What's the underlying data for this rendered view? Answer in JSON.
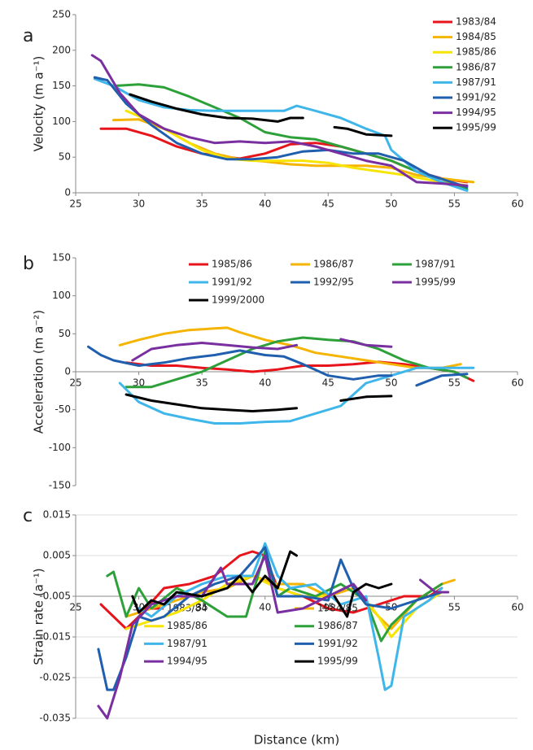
{
  "chart_data": [
    {
      "type": "line",
      "label": "a",
      "ylabel": "Velocity (m a⁻¹)",
      "xlim": [
        25,
        60
      ],
      "xticks": [
        25,
        30,
        35,
        40,
        45,
        50,
        55,
        60
      ],
      "ylim": [
        0,
        250
      ],
      "yticks": [
        0,
        50,
        100,
        150,
        200,
        250
      ],
      "xaxis_crossing": 0,
      "grid": false,
      "legend": "upper right",
      "series": [
        {
          "name": "1983/84",
          "color": "#e8141b",
          "x": [
            27,
            29,
            31,
            33,
            35,
            38,
            40,
            42,
            44,
            46,
            48,
            50,
            52,
            54,
            56
          ],
          "values": [
            90,
            90,
            80,
            65,
            55,
            48,
            55,
            68,
            70,
            65,
            55,
            45,
            30,
            20,
            15
          ]
        },
        {
          "name": "1984/85",
          "color": "#f5b400",
          "x": [
            28,
            30,
            32,
            34,
            36,
            38,
            40,
            42,
            44,
            46,
            48,
            50,
            52,
            54,
            56.5
          ],
          "values": [
            102,
            103,
            90,
            70,
            55,
            47,
            44,
            40,
            38,
            38,
            38,
            35,
            25,
            20,
            15
          ]
        },
        {
          "name": "1985/86",
          "color": "#f7e400",
          "x": [
            29,
            31,
            33,
            35,
            37,
            39,
            41,
            43,
            45,
            47,
            49,
            51,
            53,
            56
          ],
          "values": [
            115,
            100,
            80,
            60,
            48,
            45,
            45,
            45,
            42,
            35,
            30,
            25,
            18,
            10
          ]
        },
        {
          "name": "1986/87",
          "color": "#2ea03a",
          "x": [
            28,
            30,
            32,
            34,
            36,
            38,
            40,
            42,
            44,
            46,
            48,
            50,
            52,
            54,
            56
          ],
          "values": [
            150,
            152,
            148,
            135,
            120,
            105,
            85,
            78,
            75,
            65,
            55,
            45,
            30,
            15,
            5
          ]
        },
        {
          "name": "1987/91",
          "color": "#3fb6ea",
          "x": [
            26.5,
            28,
            30,
            32,
            34,
            36,
            38,
            40,
            41.5,
            42.5,
            44,
            46,
            48,
            49.5,
            50,
            52,
            54,
            56
          ],
          "values": [
            160,
            150,
            130,
            120,
            116,
            115,
            115,
            115,
            115,
            122,
            115,
            105,
            90,
            80,
            60,
            30,
            15,
            3
          ]
        },
        {
          "name": "1991/92",
          "color": "#1f5fae",
          "x": [
            26.5,
            27.5,
            29,
            31,
            33,
            35,
            37,
            39,
            41,
            43,
            45,
            47,
            49,
            51,
            53,
            56
          ],
          "values": [
            162,
            158,
            125,
            95,
            70,
            55,
            47,
            47,
            50,
            58,
            60,
            55,
            55,
            45,
            25,
            8
          ]
        },
        {
          "name": "1994/95",
          "color": "#7a2fa0",
          "x": [
            26.3,
            27,
            28.5,
            30,
            32,
            34,
            36,
            38,
            40,
            42,
            44,
            46,
            48,
            50,
            52,
            54,
            56
          ],
          "values": [
            193,
            185,
            140,
            110,
            90,
            78,
            70,
            72,
            70,
            72,
            65,
            55,
            45,
            38,
            15,
            13,
            10
          ]
        },
        {
          "name": "1995/99",
          "color": "#000000",
          "x": [
            29.3,
            31,
            33,
            35,
            37,
            39,
            41,
            42,
            43,
            null,
            45.5,
            46.5,
            48,
            50
          ],
          "values": [
            138,
            128,
            118,
            110,
            105,
            104,
            100,
            105,
            105,
            null,
            92,
            90,
            82,
            80
          ]
        }
      ]
    },
    {
      "type": "line",
      "label": "b",
      "ylabel": "Acceleration (m a⁻²)",
      "xlim": [
        25,
        60
      ],
      "xticks": [
        25,
        30,
        35,
        40,
        45,
        50,
        55,
        60
      ],
      "ylim": [
        -150,
        150
      ],
      "yticks": [
        -150,
        -100,
        -50,
        0,
        50,
        100,
        150
      ],
      "xaxis_crossing": 0,
      "grid": false,
      "legend": "upper center",
      "series": [
        {
          "name": "1985/86",
          "color": "#e8141b",
          "x": [
            29,
            31,
            33,
            35,
            37,
            39,
            41,
            43,
            45,
            47,
            49,
            51,
            53,
            55,
            56.5
          ],
          "values": [
            12,
            8,
            8,
            5,
            3,
            0,
            3,
            8,
            8,
            10,
            13,
            10,
            5,
            0,
            -12
          ]
        },
        {
          "name": "1986/87",
          "color": "#f5b400",
          "x": [
            28.5,
            30,
            32,
            34,
            36,
            37,
            38,
            40,
            42,
            44,
            46,
            48,
            50,
            52,
            54,
            55.5
          ],
          "values": [
            35,
            42,
            50,
            55,
            57,
            58,
            52,
            42,
            35,
            25,
            20,
            15,
            10,
            5,
            5,
            10
          ]
        },
        {
          "name": "1987/91",
          "color": "#2ea03a",
          "x": [
            29,
            31,
            33,
            35,
            37,
            39,
            41,
            43,
            45,
            47,
            49,
            51,
            53,
            55,
            56
          ],
          "values": [
            -20,
            -20,
            -10,
            0,
            15,
            30,
            40,
            45,
            42,
            40,
            30,
            15,
            5,
            0,
            -8
          ]
        },
        {
          "name": "1991/92",
          "color": "#3fb6ea",
          "x": [
            28.5,
            30,
            32,
            34,
            36,
            38,
            40,
            42,
            44,
            46,
            47,
            48,
            50,
            52,
            54,
            56.5
          ],
          "values": [
            -15,
            -40,
            -55,
            -62,
            -68,
            -68,
            -66,
            -65,
            -55,
            -45,
            -30,
            -15,
            -5,
            5,
            5,
            5
          ]
        },
        {
          "name": "1992/95",
          "color": "#1f5fae",
          "x": [
            26,
            27,
            28,
            30,
            32,
            34,
            36,
            38,
            40,
            41.5,
            43,
            45,
            47,
            49,
            50,
            null,
            52,
            54,
            56
          ],
          "values": [
            33,
            22,
            15,
            8,
            12,
            18,
            22,
            28,
            22,
            20,
            10,
            -5,
            -10,
            -5,
            -5,
            null,
            -18,
            -5,
            -3
          ]
        },
        {
          "name": "1995/99",
          "color": "#7a2fa0",
          "x": [
            29.5,
            31,
            33,
            35,
            37,
            39,
            41,
            42.5,
            null,
            46,
            48,
            50
          ],
          "values": [
            15,
            30,
            35,
            38,
            35,
            32,
            30,
            35,
            null,
            43,
            35,
            33
          ]
        },
        {
          "name": "1999/2000",
          "color": "#000000",
          "x": [
            29,
            31,
            33,
            35,
            37,
            39,
            41,
            42.5,
            null,
            46,
            48,
            50
          ],
          "values": [
            -30,
            -38,
            -43,
            -48,
            -50,
            -52,
            -50,
            -48,
            null,
            -38,
            -33,
            -32
          ]
        }
      ]
    },
    {
      "type": "line",
      "label": "c",
      "ylabel": "Strain rate (a⁻¹)",
      "xlabel": "Distance (km)",
      "xlim": [
        25,
        60
      ],
      "xticks": [
        25,
        30,
        35,
        40,
        45,
        50,
        55,
        60
      ],
      "ylim": [
        -0.035,
        0.015
      ],
      "yticks": [
        -0.035,
        -0.025,
        -0.015,
        -0.005,
        0.005,
        0.015
      ],
      "xaxis_crossing": -0.005,
      "grid": true,
      "legend": "lower left",
      "series": [
        {
          "name": "1983/84",
          "color": "#e8141b",
          "x": [
            27,
            28,
            29,
            30,
            32,
            34,
            36,
            38,
            39,
            40,
            41,
            43,
            45,
            47,
            49,
            51,
            53,
            54
          ],
          "values": [
            -0.007,
            -0.01,
            -0.013,
            -0.01,
            -0.003,
            -0.002,
            0,
            0.005,
            0.006,
            0.005,
            -0.003,
            -0.005,
            -0.008,
            -0.009,
            -0.007,
            -0.005,
            -0.005,
            -0.003
          ]
        },
        {
          "name": "1984/85",
          "color": "#f5b400",
          "x": [
            29,
            31,
            33,
            35,
            37,
            39,
            41,
            43,
            45,
            47,
            49,
            50,
            52,
            54,
            55
          ],
          "values": [
            -0.01,
            -0.008,
            -0.006,
            -0.004,
            -0.003,
            0,
            -0.002,
            -0.002,
            -0.005,
            -0.003,
            -0.01,
            -0.013,
            -0.006,
            -0.002,
            -0.001
          ]
        },
        {
          "name": "1985/86",
          "color": "#f7e400",
          "x": [
            29,
            31,
            33,
            35,
            37,
            39,
            41,
            43,
            45,
            47,
            49,
            50,
            52,
            54
          ],
          "values": [
            -0.013,
            -0.011,
            -0.009,
            -0.006,
            -0.002,
            0,
            -0.003,
            -0.005,
            -0.005,
            -0.002,
            -0.01,
            -0.015,
            -0.008,
            -0.004
          ]
        },
        {
          "name": "1986/87",
          "color": "#2ea03a",
          "x": [
            27.5,
            28,
            29,
            30,
            31,
            33,
            35,
            37,
            38.5,
            40,
            41,
            42,
            44,
            46,
            48,
            49.2,
            50,
            52,
            54
          ],
          "values": [
            0,
            0.001,
            -0.01,
            -0.003,
            -0.008,
            -0.003,
            -0.006,
            -0.01,
            -0.01,
            0.006,
            -0.005,
            -0.003,
            -0.005,
            -0.002,
            -0.006,
            -0.016,
            -0.012,
            -0.006,
            -0.002
          ]
        },
        {
          "name": "1987/91",
          "color": "#3fb6ea",
          "x": [
            30,
            31,
            33,
            35,
            37,
            39,
            40,
            41,
            42,
            44,
            46,
            48,
            49,
            49.5,
            50,
            51,
            53,
            54
          ],
          "values": [
            -0.008,
            -0.01,
            -0.005,
            -0.002,
            0,
            0,
            0.008,
            0,
            -0.003,
            -0.002,
            -0.007,
            -0.005,
            -0.02,
            -0.028,
            -0.027,
            -0.01,
            -0.006,
            -0.003
          ]
        },
        {
          "name": "1991/92",
          "color": "#1f5fae",
          "x": [
            26.8,
            27.5,
            28,
            29,
            30,
            31,
            32,
            34,
            36,
            38,
            40,
            41,
            43,
            45,
            46,
            47,
            48,
            50,
            52,
            54
          ],
          "values": [
            -0.018,
            -0.028,
            -0.028,
            -0.02,
            -0.01,
            -0.011,
            -0.01,
            -0.005,
            -0.002,
            0,
            0.007,
            -0.005,
            -0.005,
            -0.006,
            0.004,
            -0.003,
            -0.007,
            -0.008,
            -0.006,
            -0.004
          ]
        },
        {
          "name": "1994/95",
          "color": "#7a2fa0",
          "x": [
            26.8,
            27.5,
            28.5,
            29.5,
            31,
            33,
            35,
            36.5,
            37,
            39,
            40,
            41,
            43,
            45,
            47,
            48,
            null,
            52.3,
            53.5,
            54.5
          ],
          "values": [
            -0.032,
            -0.035,
            -0.025,
            -0.012,
            -0.007,
            -0.005,
            -0.005,
            0.002,
            -0.002,
            -0.002,
            0.005,
            -0.009,
            -0.008,
            -0.005,
            -0.002,
            -0.006,
            null,
            -0.001,
            -0.004,
            -0.004
          ]
        },
        {
          "name": "1995/99",
          "color": "#000000",
          "x": [
            29.5,
            30,
            31,
            32,
            33,
            35,
            37,
            38,
            39,
            40,
            41,
            42,
            42.5,
            null,
            45.5,
            46.5,
            47,
            48,
            49,
            50
          ],
          "values": [
            -0.005,
            -0.009,
            -0.006,
            -0.007,
            -0.004,
            -0.005,
            -0.003,
            0,
            -0.004,
            0,
            -0.003,
            0.006,
            0.005,
            null,
            -0.005,
            -0.01,
            -0.004,
            -0.002,
            -0.003,
            -0.002
          ]
        }
      ]
    }
  ]
}
